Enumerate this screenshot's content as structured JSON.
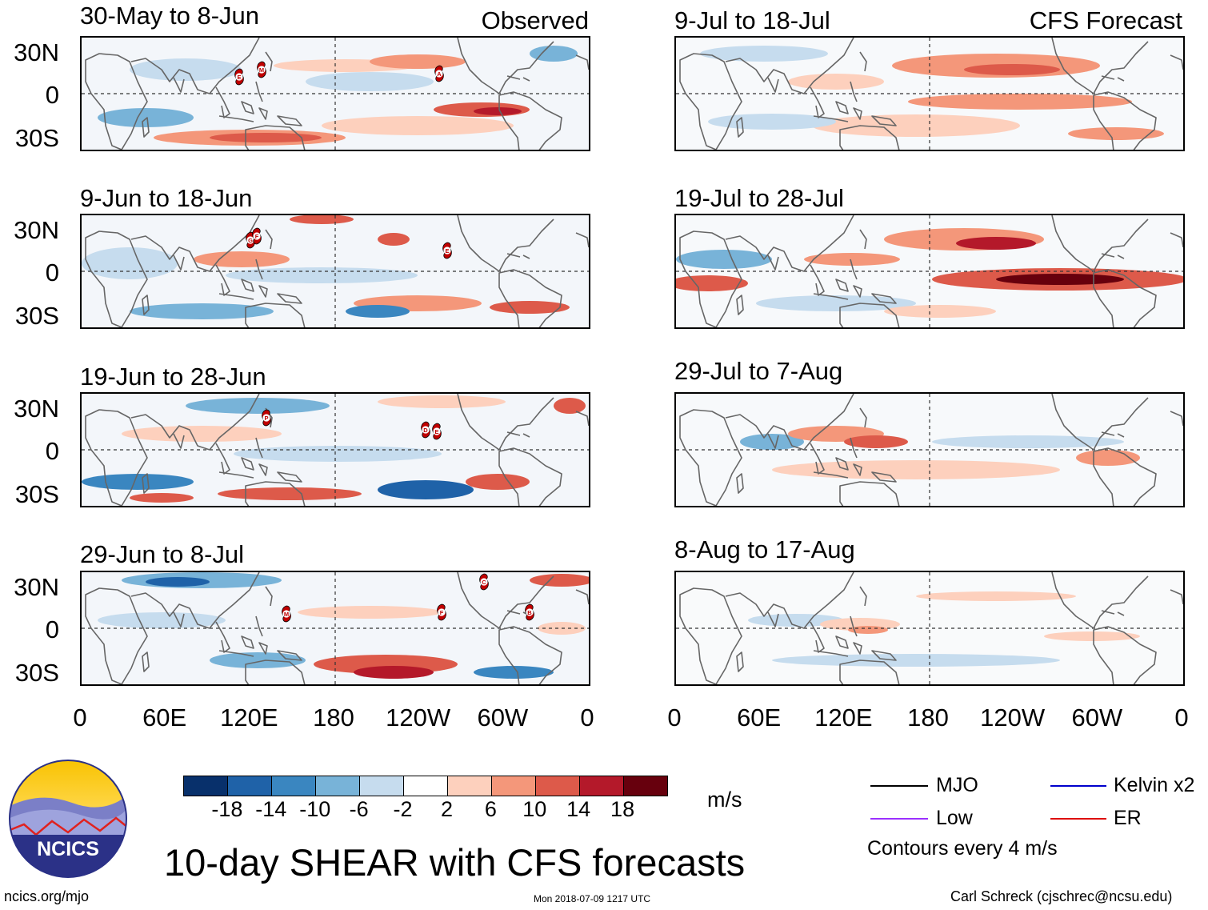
{
  "title": "10-day SHEAR with CFS forecasts",
  "observed_label": "Observed",
  "forecast_label": "CFS Forecast",
  "panels": [
    {
      "col": "left",
      "title": "30-May to 8-Jun",
      "storms": [
        "E",
        "M",
        "A"
      ]
    },
    {
      "col": "left",
      "title": "9-Jun to 18-Jun",
      "storms": [
        "G",
        "F",
        "E"
      ]
    },
    {
      "col": "left",
      "title": "19-Jun to 28-Jun",
      "storms": [
        "P",
        "D",
        "E"
      ]
    },
    {
      "col": "left",
      "title": "29-Jun to 8-Jul",
      "storms": [
        "C",
        "M",
        "F",
        "B"
      ]
    },
    {
      "col": "right",
      "title": "9-Jul to 18-Jul",
      "storms": []
    },
    {
      "col": "right",
      "title": "19-Jul to 28-Jul",
      "storms": []
    },
    {
      "col": "right",
      "title": "29-Jul to 7-Aug",
      "storms": []
    },
    {
      "col": "right",
      "title": "8-Aug to 17-Aug",
      "storms": []
    }
  ],
  "lat_labels": [
    "30N",
    "0",
    "30S"
  ],
  "lon_labels": [
    "0",
    "60E",
    "120E",
    "180",
    "120W",
    "60W",
    "0"
  ],
  "colorbar": {
    "ticks": [
      "-18",
      "-14",
      "-10",
      "-6",
      "-2",
      "2",
      "6",
      "10",
      "14",
      "18"
    ],
    "units": "m/s",
    "colors": [
      "#08306b",
      "#1f62a8",
      "#3a86c0",
      "#78b3d8",
      "#c6dcee",
      "#ffffff",
      "#fdd0bd",
      "#f4977a",
      "#dd5a4a",
      "#b4192a",
      "#67000d"
    ]
  },
  "legend": {
    "items": [
      {
        "label": "MJO",
        "color": "#000000"
      },
      {
        "label": "Kelvin x2",
        "color": "#0000cc"
      },
      {
        "label": "Low",
        "color": "#9b30ff"
      },
      {
        "label": "ER",
        "color": "#dd0000"
      }
    ],
    "contours_note": "Contours every 4 m/s"
  },
  "logo_text": "NCICS",
  "footer": {
    "url": "ncics.org/mjo",
    "timestamp": "Mon 2018-07-09 1217 UTC",
    "credit": "Carl Schreck (cjschrec@ncsu.edu)"
  }
}
